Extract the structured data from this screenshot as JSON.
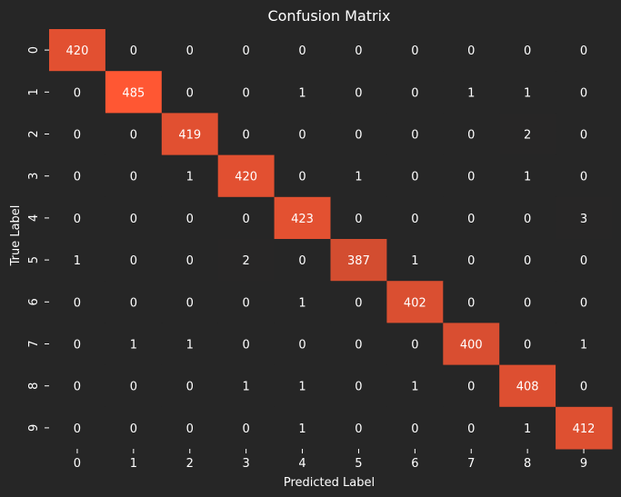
{
  "chart_data": {
    "type": "heatmap",
    "title": "Confusion Matrix",
    "xlabel": "Predicted Label",
    "ylabel": "True Label",
    "x_categories": [
      "0",
      "1",
      "2",
      "3",
      "4",
      "5",
      "6",
      "7",
      "8",
      "9"
    ],
    "y_categories": [
      "0",
      "1",
      "2",
      "3",
      "4",
      "5",
      "6",
      "7",
      "8",
      "9"
    ],
    "values": [
      [
        420,
        0,
        0,
        0,
        0,
        0,
        0,
        0,
        0,
        0
      ],
      [
        0,
        485,
        0,
        0,
        1,
        0,
        0,
        1,
        1,
        0
      ],
      [
        0,
        0,
        419,
        0,
        0,
        0,
        0,
        0,
        2,
        0
      ],
      [
        0,
        0,
        1,
        420,
        0,
        1,
        0,
        0,
        1,
        0
      ],
      [
        0,
        0,
        0,
        0,
        423,
        0,
        0,
        0,
        0,
        3
      ],
      [
        1,
        0,
        0,
        2,
        0,
        387,
        1,
        0,
        0,
        0
      ],
      [
        0,
        0,
        0,
        0,
        1,
        0,
        402,
        0,
        0,
        0
      ],
      [
        0,
        1,
        1,
        0,
        0,
        0,
        0,
        400,
        0,
        1
      ],
      [
        0,
        0,
        0,
        1,
        1,
        0,
        1,
        0,
        408,
        0
      ],
      [
        0,
        0,
        0,
        0,
        1,
        0,
        0,
        0,
        1,
        412
      ]
    ],
    "colors": {
      "background": "#262626",
      "high": "#ff5733",
      "text": "#ffffff"
    },
    "grid": false,
    "colorbar": false
  }
}
